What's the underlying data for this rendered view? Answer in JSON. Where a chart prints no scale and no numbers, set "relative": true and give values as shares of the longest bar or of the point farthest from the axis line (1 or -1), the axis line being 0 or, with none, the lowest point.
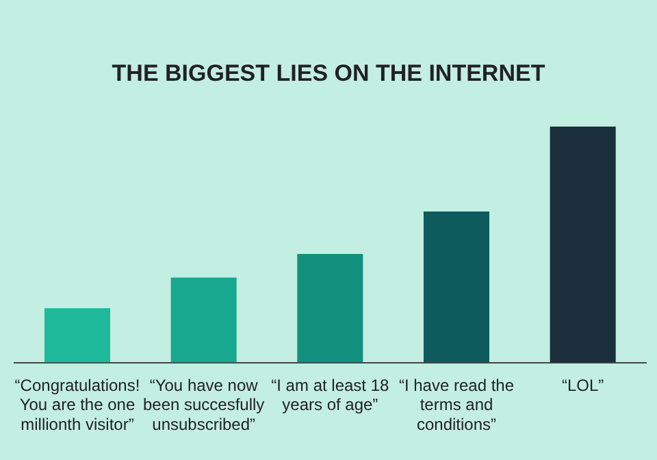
{
  "chart_data": {
    "type": "bar",
    "title": "THE BIGGEST LIES ON THE INTERNET",
    "relative": true,
    "categories": [
      "“Congratulations! You are the one millionth visitor”",
      "“You have now been succesfully unsubscribed”",
      "“I am at least 18 years of age”",
      "“I have read the terms and conditions”",
      "“LOL”"
    ],
    "values": [
      0.23,
      0.36,
      0.46,
      0.64,
      1
    ],
    "colors": [
      "#1fb99b",
      "#17a88f",
      "#12907e",
      "#0d5b5c",
      "#1b2e3b"
    ],
    "grid": false,
    "legend": false
  }
}
